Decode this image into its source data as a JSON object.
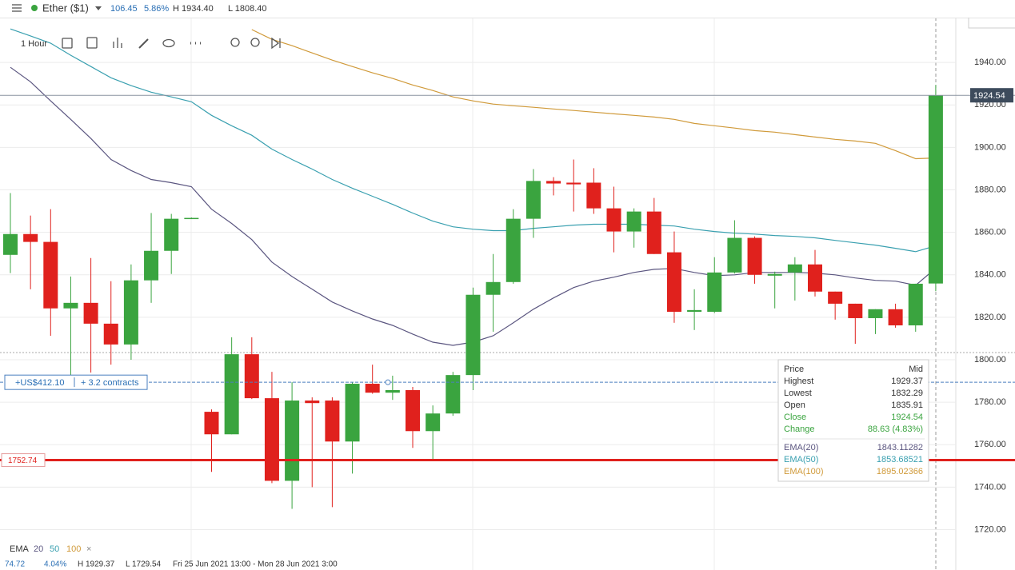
{
  "header": {
    "instrument": "Ether ($1)",
    "change": "106.45",
    "change_pct": "5.86%",
    "high": "H 1934.40",
    "low": "L 1808.40"
  },
  "toolbar": {
    "interval": "1 Hour"
  },
  "chart_data": {
    "type": "candlestick",
    "ylim": [
      1701,
      1960
    ],
    "yticks": [
      {
        "value": 1720,
        "label": "1720.00"
      },
      {
        "value": 1740,
        "label": "1740.00"
      },
      {
        "value": 1760,
        "label": "1760.00"
      },
      {
        "value": 1780,
        "label": "1780.00"
      },
      {
        "value": 1800,
        "label": "1800.00"
      },
      {
        "value": 1820,
        "label": "1820.00"
      },
      {
        "value": 1840,
        "label": "1840.00"
      },
      {
        "value": 1860,
        "label": "1860.00"
      },
      {
        "value": 1880,
        "label": "1880.00"
      },
      {
        "value": 1900,
        "label": "1900.00"
      },
      {
        "value": 1920,
        "label": "1920.00"
      },
      {
        "value": 1940,
        "label": "1940.00"
      }
    ],
    "grid": true,
    "up_color": "#3aa43f",
    "down_color": "#e0211d",
    "open": [
      1849.4,
      1859.2,
      1855.5,
      1824.2,
      1826.8,
      1817,
      1807.2,
      1837.4,
      1851.3,
      1866.8,
      1775.5,
      1764.9,
      1802.6,
      1781.9,
      1743,
      1780.8,
      1780.8,
      1761.5,
      1788.7,
      1784.5,
      1785.7,
      1766.4,
      1774.7,
      1792.8,
      1830.6,
      1836.6,
      1866.4,
      1884.2,
      1883.4,
      1883.4,
      1871.3,
      1860.4,
      1869.8,
      1850.6,
      1822.6,
      1822.6,
      1841.1,
      1857.4,
      1839.6,
      1841.1,
      1844.9,
      1832.1,
      1826.4,
      1819.6,
      1823.8,
      1816.2,
      1835.91
    ],
    "high": [
      1878.5,
      1867.9,
      1870.9,
      1839.2,
      1847.9,
      1837,
      1844.9,
      1869.1,
      1868.7,
      1867,
      1776.6,
      1810.6,
      1810.6,
      1794.3,
      1789.4,
      1782.3,
      1782.3,
      1789.4,
      1797.7,
      1792.5,
      1787.2,
      1778.5,
      1794.3,
      1834,
      1849.8,
      1870.9,
      1889.8,
      1886,
      1894.3,
      1890.2,
      1881.5,
      1871.3,
      1876.2,
      1860.4,
      1833.2,
      1848.3,
      1865.7,
      1858.1,
      1841.5,
      1848.3,
      1851.7,
      1832.1,
      1826.4,
      1823.8,
      1826.4,
      1835.8,
      1929.37
    ],
    "low": [
      1840.8,
      1833.2,
      1811.3,
      1792.5,
      1794,
      1797.7,
      1800,
      1826.8,
      1840.4,
      1866.5,
      1747.2,
      1764.9,
      1781.5,
      1741.9,
      1729.8,
      1740,
      1730.6,
      1746.4,
      1784,
      1781.1,
      1758.5,
      1752.8,
      1773.6,
      1785.7,
      1813.2,
      1835.8,
      1857.4,
      1877.4,
      1869.8,
      1868.7,
      1850.6,
      1852.8,
      1849.8,
      1817.4,
      1814,
      1822,
      1840.6,
      1835.8,
      1824.2,
      1827.9,
      1829.8,
      1818.9,
      1807.5,
      1812.1,
      1815.1,
      1813.2,
      1832.29
    ],
    "close": [
      1859.2,
      1855.5,
      1824.2,
      1826.8,
      1817,
      1807.2,
      1837.4,
      1851.3,
      1866.4,
      1866.8,
      1764.9,
      1802.6,
      1781.9,
      1743,
      1780.8,
      1779.6,
      1761.5,
      1788.7,
      1784.5,
      1785.7,
      1766.4,
      1774.7,
      1792.8,
      1830.6,
      1836.6,
      1866.4,
      1884.2,
      1883,
      1882.6,
      1871.3,
      1860.4,
      1869.8,
      1849.8,
      1822.6,
      1823.4,
      1841.1,
      1857.4,
      1840,
      1840.4,
      1844.9,
      1832.1,
      1826.4,
      1819.6,
      1823.8,
      1816.2,
      1835.8,
      1924.54
    ],
    "ema": [
      {
        "color": "#5b5680",
        "values": [
          1937.7,
          1930.9,
          1921.9,
          1913.2,
          1904.2,
          1894.3,
          1889.1,
          1884.9,
          1883.4,
          1881.5,
          1870.9,
          1864.2,
          1856.6,
          1846,
          1839.2,
          1833.2,
          1827.2,
          1823,
          1819.2,
          1816.2,
          1812.1,
          1808.3,
          1806.8,
          1808.3,
          1811.3,
          1817.4,
          1823.8,
          1829.1,
          1834,
          1837,
          1838.9,
          1841.1,
          1842.6,
          1843,
          1841.1,
          1839.6,
          1840,
          1841.1,
          1841.1,
          1841.1,
          1840.8,
          1840,
          1838.5,
          1837.4,
          1837,
          1835.1,
          1843.11282
        ]
      },
      {
        "color": "#3aa0b0",
        "values": [
          1955.8,
          1952.5,
          1949.1,
          1943.4,
          1938.1,
          1932.8,
          1929.1,
          1926,
          1923.8,
          1921.5,
          1915.1,
          1910.2,
          1905.7,
          1899.2,
          1894.3,
          1889.8,
          1884.9,
          1880.8,
          1877,
          1873.2,
          1869.1,
          1865.3,
          1862.6,
          1861.5,
          1860.8,
          1860.8,
          1861.9,
          1862.6,
          1863.4,
          1863.8,
          1863.8,
          1863.8,
          1863.4,
          1863,
          1861.5,
          1860.4,
          1859.6,
          1859.2,
          1858.5,
          1858.1,
          1857.4,
          1856.2,
          1855.1,
          1854,
          1852.5,
          1850.9,
          1853.68521
        ]
      },
      {
        "color": "#d09a3a",
        "values": [
          null,
          null,
          null,
          null,
          null,
          null,
          null,
          null,
          null,
          null,
          null,
          null,
          1955.5,
          1950.9,
          1947.9,
          1944.5,
          1941.1,
          1938.1,
          1935.1,
          1932.5,
          1929.4,
          1926.8,
          1923.8,
          1921.9,
          1920.4,
          1919.6,
          1918.9,
          1918.1,
          1917.4,
          1916.6,
          1915.8,
          1915.1,
          1914.3,
          1913.2,
          1911.3,
          1910.2,
          1909.1,
          1907.9,
          1907.2,
          1906,
          1904.9,
          1903.8,
          1903,
          1901.9,
          1898.5,
          1894.7,
          1895.02
        ]
      }
    ],
    "alert_level": 1752.74,
    "position": {
      "level": 1789.4,
      "pnl": "+US$412.10",
      "size": "+ 3.2 contracts"
    }
  },
  "tooltip": {
    "header": [
      "Price",
      "Mid"
    ],
    "rows": [
      [
        "Highest",
        "1929.37"
      ],
      [
        "Lowest",
        "1832.29"
      ],
      [
        "Open",
        "1835.91"
      ],
      [
        "Close",
        "1924.54"
      ],
      [
        "Change",
        "88.63 (4.83%)"
      ]
    ],
    "ema_rows": [
      [
        "EMA(20)",
        "1843.11282"
      ],
      [
        "EMA(50)",
        "1853.68521"
      ],
      [
        "EMA(100)",
        "1895.02366"
      ]
    ]
  },
  "footer": {
    "study": "EMA",
    "periods": [
      "20",
      "50",
      "100"
    ],
    "close": "×",
    "stats": [
      "74.72",
      "4.04%",
      "H 1929.37",
      "L 1729.54",
      "Fri 25 Jun 2021 13:00 - Mon 28 Jun 2021 3:00"
    ]
  }
}
